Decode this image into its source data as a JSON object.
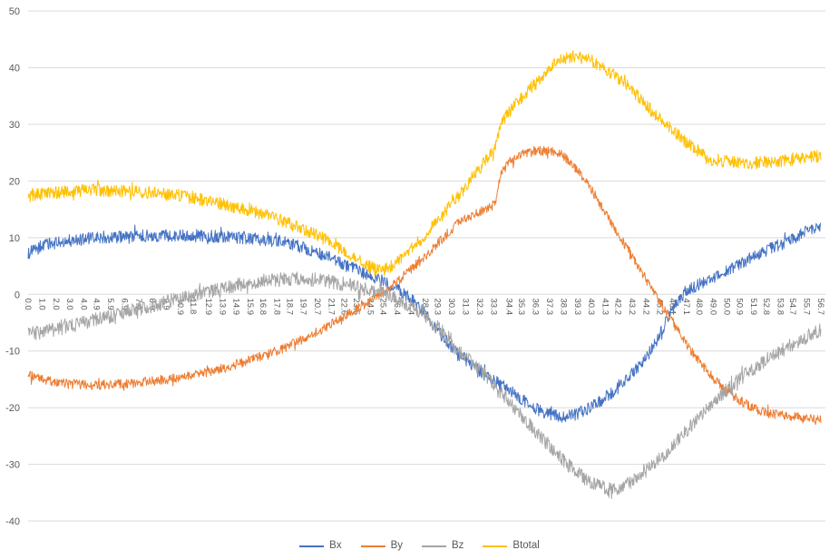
{
  "styles": {
    "background": "#FFFFFF",
    "gridline_color": "#D9D9D9",
    "axis_label_color": "#595959"
  },
  "chart_data": {
    "type": "line",
    "title": "",
    "xlabel": "",
    "ylabel": "",
    "grid": "horizontal",
    "legend_position": "bottom-center",
    "x_range": [
      0,
      56.7
    ],
    "ylim": [
      -40,
      50
    ],
    "y_ticks": [
      50,
      40,
      30,
      20,
      10,
      0,
      -10,
      -20,
      -30,
      -40
    ],
    "x_tick_labels": [
      "0.0",
      "1.0",
      "2.0",
      "3.0",
      "4.0",
      "4.9",
      "5.9",
      "6.9",
      "7.9",
      "8.9",
      "9.9",
      "10.9",
      "11.8",
      "12.9",
      "13.9",
      "14.9",
      "15.9",
      "16.8",
      "17.8",
      "18.7",
      "19.7",
      "20.7",
      "21.7",
      "22.6",
      "23.5",
      "24.5",
      "25.4",
      "26.4",
      "27.4",
      "28.4",
      "29.3",
      "30.3",
      "31.3",
      "32.3",
      "33.3",
      "34.4",
      "35.3",
      "36.3",
      "37.3",
      "38.3",
      "39.3",
      "40.3",
      "41.3",
      "42.2",
      "43.2",
      "44.2",
      "45.2",
      "46.1",
      "47.1",
      "48.0",
      "49.0",
      "50.0",
      "50.9",
      "51.9",
      "52.8",
      "53.8",
      "54.7",
      "55.7",
      "56.7"
    ],
    "series": [
      {
        "name": "Bx",
        "color": "#4472C4",
        "noise_amplitude": 1.1,
        "keypoints": [
          [
            0,
            7.2
          ],
          [
            1,
            8.5
          ],
          [
            2,
            9.1
          ],
          [
            3,
            9.5
          ],
          [
            4,
            9.8
          ],
          [
            6,
            10.1
          ],
          [
            8,
            10.3
          ],
          [
            10,
            10.4
          ],
          [
            12,
            10.4
          ],
          [
            14,
            10.2
          ],
          [
            16,
            9.9
          ],
          [
            18,
            9.3
          ],
          [
            19,
            8.8
          ],
          [
            20,
            8.0
          ],
          [
            21,
            7.0
          ],
          [
            22,
            5.9
          ],
          [
            23,
            4.8
          ],
          [
            24,
            3.7
          ],
          [
            25,
            2.7
          ],
          [
            26,
            1.5
          ],
          [
            27,
            0.0
          ],
          [
            28,
            -2.2
          ],
          [
            29,
            -5.5
          ],
          [
            30,
            -8.5
          ],
          [
            31,
            -11.0
          ],
          [
            32,
            -13.0
          ],
          [
            33,
            -14.8
          ],
          [
            34,
            -16.3
          ],
          [
            35,
            -18.0
          ],
          [
            36,
            -19.8
          ],
          [
            37,
            -21.0
          ],
          [
            38,
            -21.6
          ],
          [
            39,
            -21.4
          ],
          [
            40,
            -20.3
          ],
          [
            41,
            -18.8
          ],
          [
            42,
            -16.8
          ],
          [
            43,
            -14.5
          ],
          [
            44,
            -12.0
          ],
          [
            45,
            -8.0
          ],
          [
            46,
            -3.0
          ],
          [
            47,
            0.5
          ],
          [
            48,
            1.8
          ],
          [
            49,
            3.0
          ],
          [
            50,
            4.2
          ],
          [
            51,
            5.5
          ],
          [
            52,
            6.8
          ],
          [
            53,
            8.0
          ],
          [
            54,
            9.0
          ],
          [
            55,
            10.2
          ],
          [
            56,
            11.5
          ],
          [
            56.7,
            12.3
          ]
        ]
      },
      {
        "name": "By",
        "color": "#ED7D31",
        "noise_amplitude": 0.85,
        "keypoints": [
          [
            0,
            -14.3
          ],
          [
            1,
            -15.0
          ],
          [
            2,
            -15.5
          ],
          [
            3,
            -15.8
          ],
          [
            4,
            -16.0
          ],
          [
            5,
            -16.0
          ],
          [
            6,
            -15.9
          ],
          [
            7,
            -15.8
          ],
          [
            8,
            -15.6
          ],
          [
            9,
            -15.3
          ],
          [
            10,
            -15.0
          ],
          [
            11,
            -14.6
          ],
          [
            12,
            -14.1
          ],
          [
            13,
            -13.6
          ],
          [
            14,
            -13.0
          ],
          [
            15,
            -12.3
          ],
          [
            16,
            -11.5
          ],
          [
            17,
            -10.7
          ],
          [
            18,
            -9.8
          ],
          [
            19,
            -8.7
          ],
          [
            20,
            -7.5
          ],
          [
            21,
            -6.2
          ],
          [
            22,
            -4.8
          ],
          [
            23,
            -3.3
          ],
          [
            24,
            -1.8
          ],
          [
            25,
            -0.3
          ],
          [
            26,
            1.5
          ],
          [
            27,
            3.5
          ],
          [
            28,
            5.8
          ],
          [
            29,
            8.2
          ],
          [
            30,
            10.8
          ],
          [
            31,
            13.0
          ],
          [
            32,
            14.2
          ],
          [
            33,
            15.3
          ],
          [
            33.4,
            16.0
          ],
          [
            33.8,
            21.5
          ],
          [
            34.5,
            23.5
          ],
          [
            35.5,
            24.8
          ],
          [
            36.5,
            25.4
          ],
          [
            37.5,
            25.2
          ],
          [
            38,
            24.8
          ],
          [
            38.5,
            24.0
          ],
          [
            39,
            22.8
          ],
          [
            40,
            19.8
          ],
          [
            41,
            15.5
          ],
          [
            42,
            11.5
          ],
          [
            43,
            7.5
          ],
          [
            44,
            3.5
          ],
          [
            45,
            -0.8
          ],
          [
            46,
            -4.5
          ],
          [
            47,
            -8.5
          ],
          [
            48,
            -11.8
          ],
          [
            49,
            -14.8
          ],
          [
            50,
            -17.0
          ],
          [
            51,
            -18.8
          ],
          [
            52,
            -20.2
          ],
          [
            53,
            -21.0
          ],
          [
            54,
            -21.4
          ],
          [
            55,
            -21.6
          ],
          [
            56,
            -21.9
          ],
          [
            56.7,
            -22.2
          ]
        ]
      },
      {
        "name": "Bz",
        "color": "#A5A5A5",
        "noise_amplitude": 1.25,
        "keypoints": [
          [
            0,
            -7.0
          ],
          [
            1,
            -6.6
          ],
          [
            2,
            -6.1
          ],
          [
            3,
            -5.6
          ],
          [
            4,
            -5.0
          ],
          [
            5,
            -4.4
          ],
          [
            6,
            -3.8
          ],
          [
            7,
            -3.1
          ],
          [
            8,
            -2.5
          ],
          [
            9,
            -1.9
          ],
          [
            10,
            -1.3
          ],
          [
            11,
            -0.7
          ],
          [
            12,
            -0.1
          ],
          [
            13,
            0.5
          ],
          [
            14,
            1.1
          ],
          [
            15,
            1.6
          ],
          [
            16,
            2.1
          ],
          [
            17,
            2.4
          ],
          [
            18,
            2.6
          ],
          [
            19,
            2.7
          ],
          [
            20,
            2.7
          ],
          [
            21,
            2.5
          ],
          [
            22,
            2.1
          ],
          [
            23,
            1.6
          ],
          [
            24,
            1.0
          ],
          [
            25,
            0.4
          ],
          [
            26,
            -0.4
          ],
          [
            27,
            -1.6
          ],
          [
            28,
            -3.2
          ],
          [
            29,
            -5.2
          ],
          [
            30,
            -7.5
          ],
          [
            31,
            -10.0
          ],
          [
            32,
            -12.5
          ],
          [
            33,
            -15.0
          ],
          [
            34,
            -17.7
          ],
          [
            35,
            -20.5
          ],
          [
            36,
            -23.3
          ],
          [
            37,
            -26.0
          ],
          [
            38,
            -28.7
          ],
          [
            39,
            -31.0
          ],
          [
            40,
            -32.8
          ],
          [
            41,
            -34.0
          ],
          [
            41.5,
            -34.4
          ],
          [
            42,
            -34.4
          ],
          [
            43,
            -33.5
          ],
          [
            44,
            -31.8
          ],
          [
            45,
            -29.5
          ],
          [
            46,
            -27.0
          ],
          [
            47,
            -24.3
          ],
          [
            48,
            -21.7
          ],
          [
            49,
            -19.2
          ],
          [
            50,
            -16.8
          ],
          [
            51,
            -14.7
          ],
          [
            52,
            -12.9
          ],
          [
            53,
            -11.3
          ],
          [
            54,
            -9.8
          ],
          [
            55,
            -8.4
          ],
          [
            56,
            -7.0
          ],
          [
            56.7,
            -6.2
          ]
        ]
      },
      {
        "name": "Btotal",
        "color": "#FFC000",
        "noise_amplitude": 1.1,
        "keypoints": [
          [
            0,
            17.3
          ],
          [
            1,
            17.8
          ],
          [
            2,
            18.0
          ],
          [
            3,
            18.2
          ],
          [
            4,
            18.3
          ],
          [
            5,
            18.4
          ],
          [
            6,
            18.3
          ],
          [
            7,
            18.2
          ],
          [
            8,
            18.1
          ],
          [
            9,
            17.9
          ],
          [
            10,
            17.6
          ],
          [
            11,
            17.3
          ],
          [
            12,
            16.9
          ],
          [
            13,
            16.4
          ],
          [
            14,
            15.9
          ],
          [
            15,
            15.3
          ],
          [
            16,
            14.7
          ],
          [
            17,
            14.0
          ],
          [
            18,
            13.2
          ],
          [
            19,
            12.2
          ],
          [
            20,
            11.2
          ],
          [
            21,
            10.0
          ],
          [
            22,
            8.6
          ],
          [
            23,
            7.0
          ],
          [
            24,
            5.5
          ],
          [
            24.8,
            4.5
          ],
          [
            25.5,
            4.3
          ],
          [
            26,
            5.0
          ],
          [
            26.5,
            6.0
          ],
          [
            27,
            7.2
          ],
          [
            28,
            9.5
          ],
          [
            29,
            12.0
          ],
          [
            30,
            15.0
          ],
          [
            30.5,
            16.5
          ],
          [
            31,
            18.0
          ],
          [
            31.5,
            19.8
          ],
          [
            32,
            21.3
          ],
          [
            32.5,
            22.8
          ],
          [
            33,
            24.5
          ],
          [
            33.4,
            26.0
          ],
          [
            33.8,
            30.0
          ],
          [
            34.5,
            32.5
          ],
          [
            35,
            33.8
          ],
          [
            36,
            36.5
          ],
          [
            37,
            39.0
          ],
          [
            37.5,
            40.2
          ],
          [
            38,
            41.2
          ],
          [
            38.5,
            41.8
          ],
          [
            39,
            42.0
          ],
          [
            39.5,
            41.8
          ],
          [
            40,
            41.5
          ],
          [
            40.5,
            41.0
          ],
          [
            41,
            40.2
          ],
          [
            42,
            38.5
          ],
          [
            43,
            36.5
          ],
          [
            44,
            34.0
          ],
          [
            45,
            31.5
          ],
          [
            46,
            29.2
          ],
          [
            47,
            27.0
          ],
          [
            48,
            25.2
          ],
          [
            48.5,
            24.3
          ],
          [
            49,
            23.8
          ],
          [
            50,
            23.4
          ],
          [
            51,
            23.2
          ],
          [
            52,
            23.2
          ],
          [
            53,
            23.4
          ],
          [
            54,
            23.6
          ],
          [
            55,
            23.9
          ],
          [
            56,
            24.2
          ],
          [
            56.7,
            24.5
          ]
        ]
      }
    ]
  }
}
